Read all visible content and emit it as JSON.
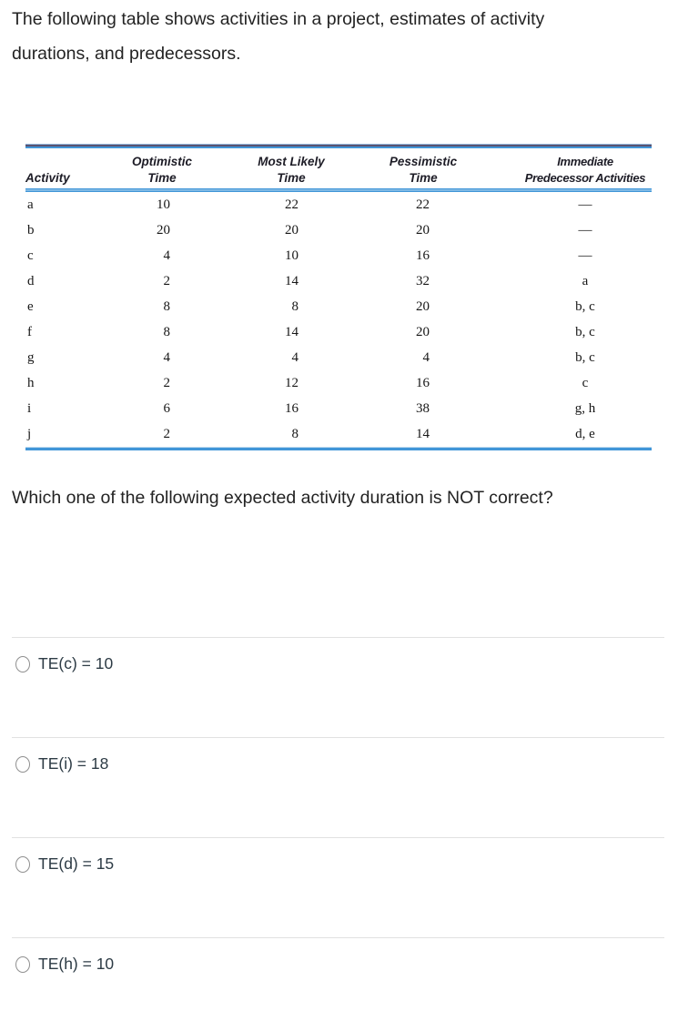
{
  "intro": "The following table shows activities in a project, estimates of activity durations, and predecessors.",
  "question": "Which one of the following expected activity duration is NOT correct?",
  "table": {
    "headers": [
      {
        "top": "",
        "bottom": "Activity"
      },
      {
        "top": "Optimistic",
        "bottom": "Time"
      },
      {
        "top": "Most Likely",
        "bottom": "Time"
      },
      {
        "top": "Pessimistic",
        "bottom": "Time"
      },
      {
        "top": "Immediate",
        "bottom": "Predecessor Activities"
      }
    ],
    "rows": [
      {
        "act": "a",
        "opt": "10",
        "ml": "22",
        "pess": "22",
        "pred": "—"
      },
      {
        "act": "b",
        "opt": "20",
        "ml": "20",
        "pess": "20",
        "pred": "—"
      },
      {
        "act": "c",
        "opt": "4",
        "ml": "10",
        "pess": "16",
        "pred": "—"
      },
      {
        "act": "d",
        "opt": "2",
        "ml": "14",
        "pess": "32",
        "pred": "a"
      },
      {
        "act": "e",
        "opt": "8",
        "ml": "8",
        "pess": "20",
        "pred": "b, c"
      },
      {
        "act": "f",
        "opt": "8",
        "ml": "14",
        "pess": "20",
        "pred": "b, c"
      },
      {
        "act": "g",
        "opt": "4",
        "ml": "4",
        "pess": "4",
        "pred": "b, c"
      },
      {
        "act": "h",
        "opt": "2",
        "ml": "12",
        "pess": "16",
        "pred": "c"
      },
      {
        "act": "i",
        "opt": "6",
        "ml": "16",
        "pess": "38",
        "pred": "g, h"
      },
      {
        "act": "j",
        "opt": "2",
        "ml": "8",
        "pess": "14",
        "pred": "d, e"
      }
    ]
  },
  "options": [
    {
      "label": "TE(c) = 10"
    },
    {
      "label": "TE(i) = 18"
    },
    {
      "label": "TE(d) = 15"
    },
    {
      "label": "TE(h) = 10"
    }
  ],
  "colors": {
    "rule_blue": "#4196d8",
    "rule_dark": "#5a5270",
    "option_text": "#2d3b45",
    "divider": "#e1e1e1"
  }
}
